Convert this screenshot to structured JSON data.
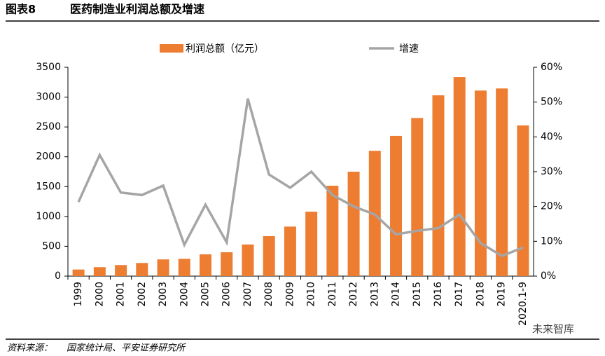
{
  "header": {
    "figure": "图表8",
    "title": "医药制造业利润总额及增速"
  },
  "chart_data": {
    "type": "bar-line",
    "categories": [
      "1999",
      "2000",
      "2001",
      "2002",
      "2003",
      "2004",
      "2005",
      "2006",
      "2007",
      "2008",
      "2009",
      "2010",
      "2011",
      "2012",
      "2013",
      "2014",
      "2015",
      "2016",
      "2017",
      "2018",
      "2019",
      "2020.1-9"
    ],
    "series": [
      {
        "name": "利润总额（亿元）",
        "color": "#ED7D31",
        "type": "bar",
        "values": [
          110,
          150,
          185,
          220,
          280,
          290,
          365,
          400,
          530,
          670,
          830,
          1080,
          1515,
          1750,
          2100,
          2350,
          2650,
          3030,
          3335,
          3110,
          3145,
          2525
        ]
      },
      {
        "name": "增速",
        "color": "#A5A5A5",
        "type": "line",
        "axis": "y2",
        "values": [
          21.3,
          34.8,
          24,
          23.3,
          26,
          9,
          20.5,
          9.7,
          51,
          29.2,
          25.4,
          30,
          23.3,
          20,
          17.7,
          12,
          13,
          13.8,
          17.7,
          9.5,
          5.8,
          8.2
        ]
      }
    ],
    "ylim": [
      0,
      3500
    ],
    "yticks": [
      0,
      500,
      1000,
      1500,
      2000,
      2500,
      3000,
      3500
    ],
    "y2lim": [
      0,
      60
    ],
    "y2ticks": [
      {
        "value": 0,
        "label": "0%"
      },
      {
        "value": 10,
        "label": "10%"
      },
      {
        "value": 20,
        "label": "20%"
      },
      {
        "value": 30,
        "label": "30%"
      },
      {
        "value": 40,
        "label": "40%"
      },
      {
        "value": 50,
        "label": "50%"
      },
      {
        "value": 60,
        "label": "60%"
      }
    ],
    "legend": "top"
  },
  "footer": {
    "source_label": "资料来源：",
    "source": "国家统计局、平安证券研究所",
    "watermark": "未来智库"
  }
}
